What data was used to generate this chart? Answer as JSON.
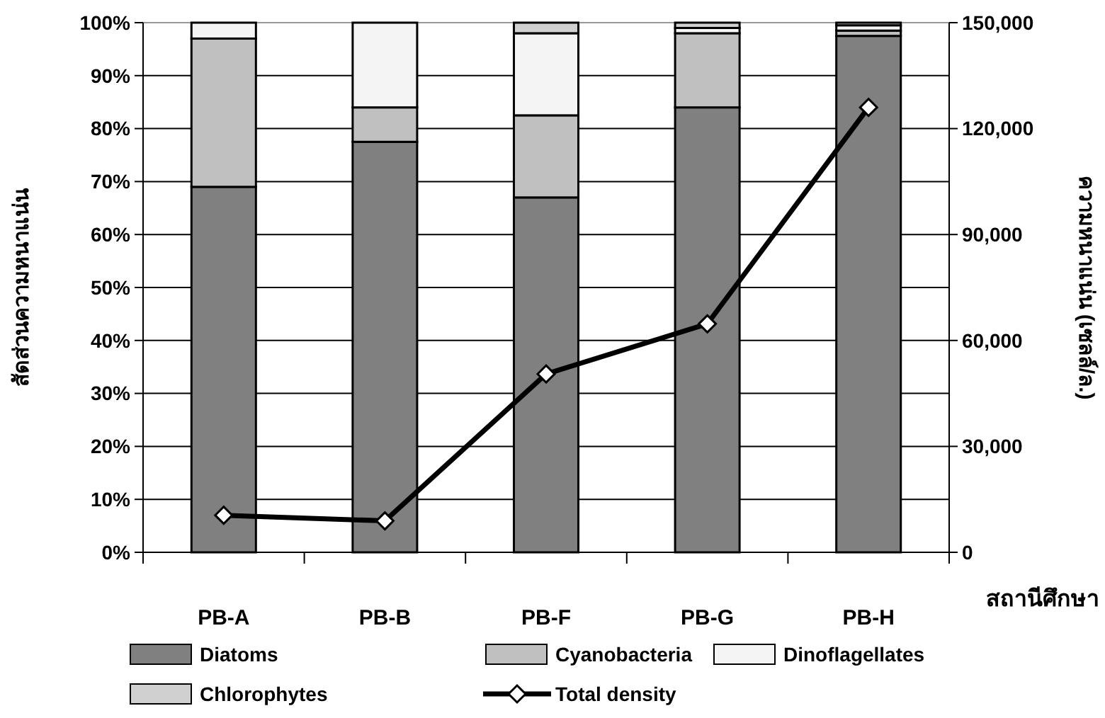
{
  "chart_data": {
    "type": "bar",
    "stacked": true,
    "categories": [
      "PB-A",
      "PB-B",
      "PB-F",
      "PB-G",
      "PB-H"
    ],
    "series": [
      {
        "name": "Diatoms",
        "color": "#808080",
        "values": [
          69,
          77.5,
          67,
          84,
          97.5
        ]
      },
      {
        "name": "Cyanobacteria",
        "color": "#c0c0c0",
        "values": [
          28,
          6.5,
          15.5,
          14,
          1
        ]
      },
      {
        "name": "Dinoflagellates",
        "color": "#f4f4f4",
        "values": [
          3,
          16,
          15.5,
          1,
          1
        ]
      },
      {
        "name": "Chlorophytes",
        "color": "#d0d0d0",
        "values": [
          0,
          0,
          2,
          1,
          0.5
        ]
      },
      {
        "name": "Total density",
        "type": "line",
        "axis": "y2",
        "color": "#000000",
        "marker": "diamond",
        "values": [
          10500,
          8900,
          50500,
          64700,
          126000
        ]
      }
    ],
    "ylim": [
      0,
      100
    ],
    "yticks": [
      {
        "value": 0,
        "label": "0%"
      },
      {
        "value": 10,
        "label": "10%"
      },
      {
        "value": 20,
        "label": "20%"
      },
      {
        "value": 30,
        "label": "30%"
      },
      {
        "value": 40,
        "label": "40%"
      },
      {
        "value": 50,
        "label": "50%"
      },
      {
        "value": 60,
        "label": "60%"
      },
      {
        "value": 70,
        "label": "70%"
      },
      {
        "value": 80,
        "label": "80%"
      },
      {
        "value": 90,
        "label": "90%"
      },
      {
        "value": 100,
        "label": "100%"
      }
    ],
    "y2lim": [
      0,
      150000
    ],
    "y2ticks": [
      {
        "value": 0,
        "label": "0"
      },
      {
        "value": 30000,
        "label": "30,000"
      },
      {
        "value": 60000,
        "label": "60,000"
      },
      {
        "value": 90000,
        "label": "90,000"
      },
      {
        "value": 120000,
        "label": "120,000"
      },
      {
        "value": 150000,
        "label": "150,000"
      }
    ],
    "ylabel": "สัดส่วนความหนาแน่น",
    "y2label": "ความหนาแน่น (เซลล์/ล.)",
    "xlabel": "สถานีศึกษา",
    "grid": "y",
    "legend": "bottom"
  }
}
